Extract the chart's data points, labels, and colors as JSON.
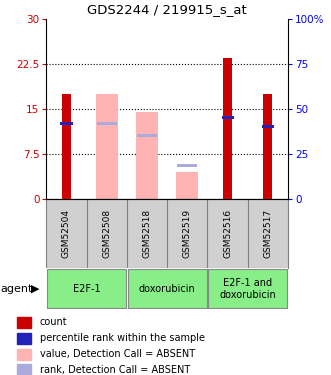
{
  "title": "GDS2244 / 219915_s_at",
  "samples": [
    "GSM52504",
    "GSM52508",
    "GSM52518",
    "GSM52519",
    "GSM52516",
    "GSM52517"
  ],
  "agents": [
    {
      "label": "E2F-1",
      "span": [
        0,
        2
      ]
    },
    {
      "label": "doxorubicin",
      "span": [
        2,
        4
      ]
    },
    {
      "label": "E2F-1 and\ndoxorubicin",
      "span": [
        4,
        6
      ]
    }
  ],
  "red_bars": [
    17.5,
    0,
    0,
    0,
    23.5,
    17.5
  ],
  "pink_bars": [
    0,
    17.5,
    14.5,
    4.5,
    0,
    0
  ],
  "blue_markers": [
    12.5,
    0,
    0,
    0,
    13.5,
    12.0
  ],
  "lilac_markers": [
    0,
    12.5,
    10.5,
    5.5,
    0,
    0
  ],
  "ylim_left": [
    0,
    30
  ],
  "ylim_right": [
    0,
    100
  ],
  "yticks_left": [
    0,
    7.5,
    15,
    22.5,
    30
  ],
  "yticks_right": [
    0,
    25,
    50,
    75,
    100
  ],
  "ytick_labels_left": [
    "0",
    "7.5",
    "15",
    "22.5",
    "30"
  ],
  "ytick_labels_right": [
    "0",
    "25",
    "50",
    "75",
    "100%"
  ],
  "red_color": "#cc0000",
  "pink_color": "#ffb3b3",
  "blue_color": "#2222bb",
  "lilac_color": "#aaaadd",
  "background_samples": "#d0d0d0",
  "background_agents": "#88ee88",
  "legend_items": [
    {
      "color": "#cc0000",
      "label": "count"
    },
    {
      "color": "#2222bb",
      "label": "percentile rank within the sample"
    },
    {
      "color": "#ffb3b3",
      "label": "value, Detection Call = ABSENT"
    },
    {
      "color": "#aaaadd",
      "label": "rank, Detection Call = ABSENT"
    }
  ]
}
